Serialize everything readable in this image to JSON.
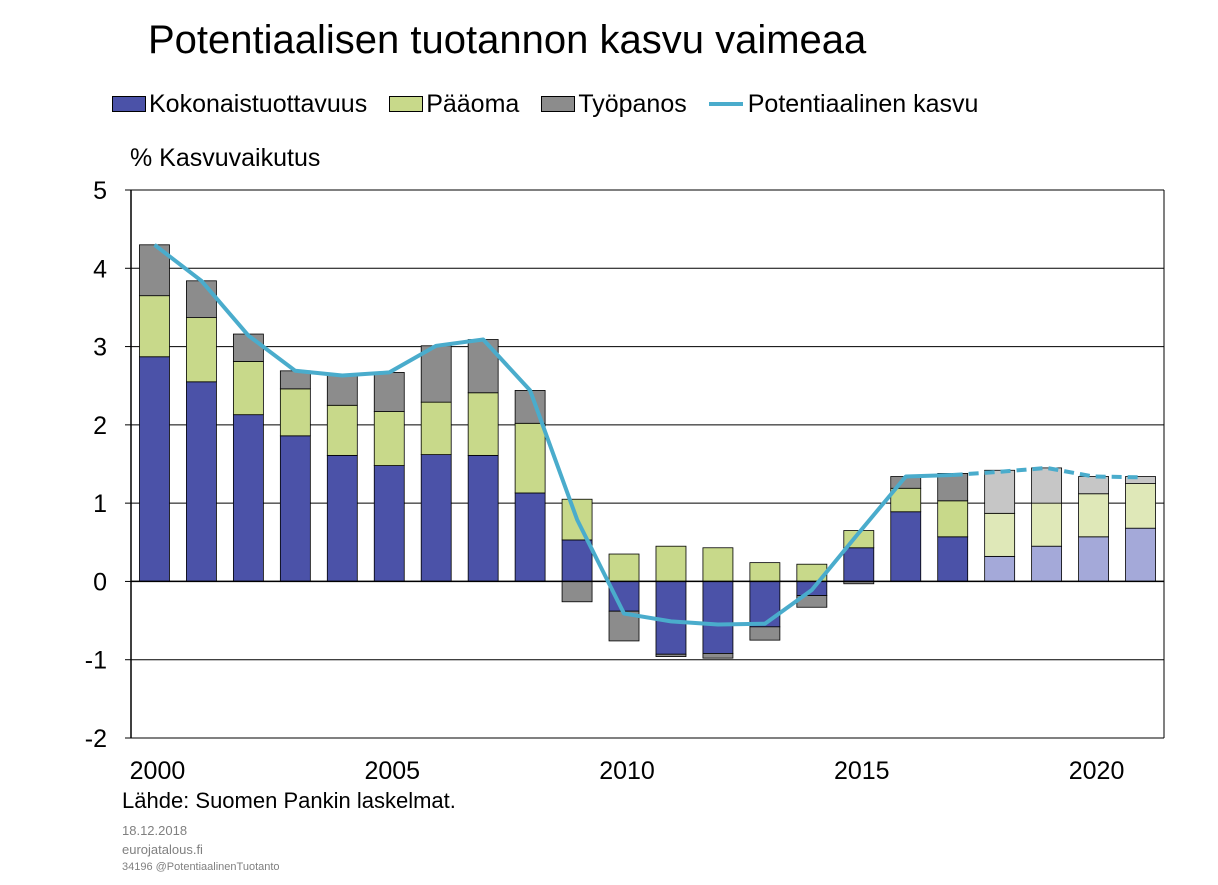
{
  "colors": {
    "productivity": "#4b52a8",
    "capital": "#c8d98a",
    "labour": "#8c8c8c",
    "productivity_forecast": "#a4a9d9",
    "capital_forecast": "#dfe8b8",
    "labour_forecast": "#c6c6c6",
    "potential_line": "#4aaccc"
  },
  "chart_data": {
    "type": "bar",
    "stacked": true,
    "title": "Potentiaalisen tuotannon kasvu vaimeaa",
    "ylabel": "% Kasvuvaikutus",
    "ylim": [
      -2,
      5
    ],
    "yticks": [
      "5",
      "4",
      "3",
      "2",
      "1",
      "0",
      "-1",
      "-2"
    ],
    "xticks": [
      "2000",
      "2005",
      "2010",
      "2015",
      "2020"
    ],
    "grid": true,
    "legend_position": "top",
    "categories": [
      2000,
      2001,
      2002,
      2003,
      2004,
      2005,
      2006,
      2007,
      2008,
      2009,
      2010,
      2011,
      2012,
      2013,
      2014,
      2015,
      2016,
      2017,
      2018,
      2019,
      2020,
      2021
    ],
    "forecast_from": 2018,
    "series": [
      {
        "name": "Kokonaistuottavuus",
        "values": [
          2.87,
          2.55,
          2.13,
          1.86,
          1.61,
          1.48,
          1.62,
          1.61,
          1.13,
          0.53,
          -0.38,
          -0.93,
          -0.92,
          -0.58,
          -0.18,
          0.43,
          0.89,
          0.57,
          0.32,
          0.45,
          0.57,
          0.68
        ]
      },
      {
        "name": "Pääoma",
        "values": [
          0.78,
          0.82,
          0.68,
          0.6,
          0.64,
          0.69,
          0.67,
          0.8,
          0.89,
          0.52,
          0.35,
          0.45,
          0.43,
          0.24,
          0.22,
          0.22,
          0.3,
          0.46,
          0.55,
          0.55,
          0.55,
          0.57
        ]
      },
      {
        "name": "Työpanos",
        "values": [
          0.65,
          0.47,
          0.35,
          0.23,
          0.38,
          0.5,
          0.72,
          0.68,
          0.42,
          -0.26,
          -0.38,
          -0.03,
          -0.06,
          -0.17,
          -0.15,
          -0.03,
          0.15,
          0.35,
          0.55,
          0.45,
          0.22,
          0.09
        ]
      }
    ],
    "line": {
      "name": "Potentiaalinen kasvu",
      "values": [
        4.3,
        3.84,
        3.14,
        2.69,
        2.63,
        2.67,
        3.01,
        3.09,
        2.44,
        0.79,
        -0.41,
        -0.51,
        -0.55,
        -0.54,
        -0.11,
        0.62,
        1.34,
        1.36,
        1.4,
        1.45,
        1.34,
        1.33
      ],
      "dashed_from": 2017
    }
  },
  "source": "Lähde: Suomen Pankin laskelmat.",
  "footer": {
    "date": "18.12.2018",
    "site": "eurojatalous.fi",
    "ref": "34196 @PotentiaalinenTuotanto"
  }
}
